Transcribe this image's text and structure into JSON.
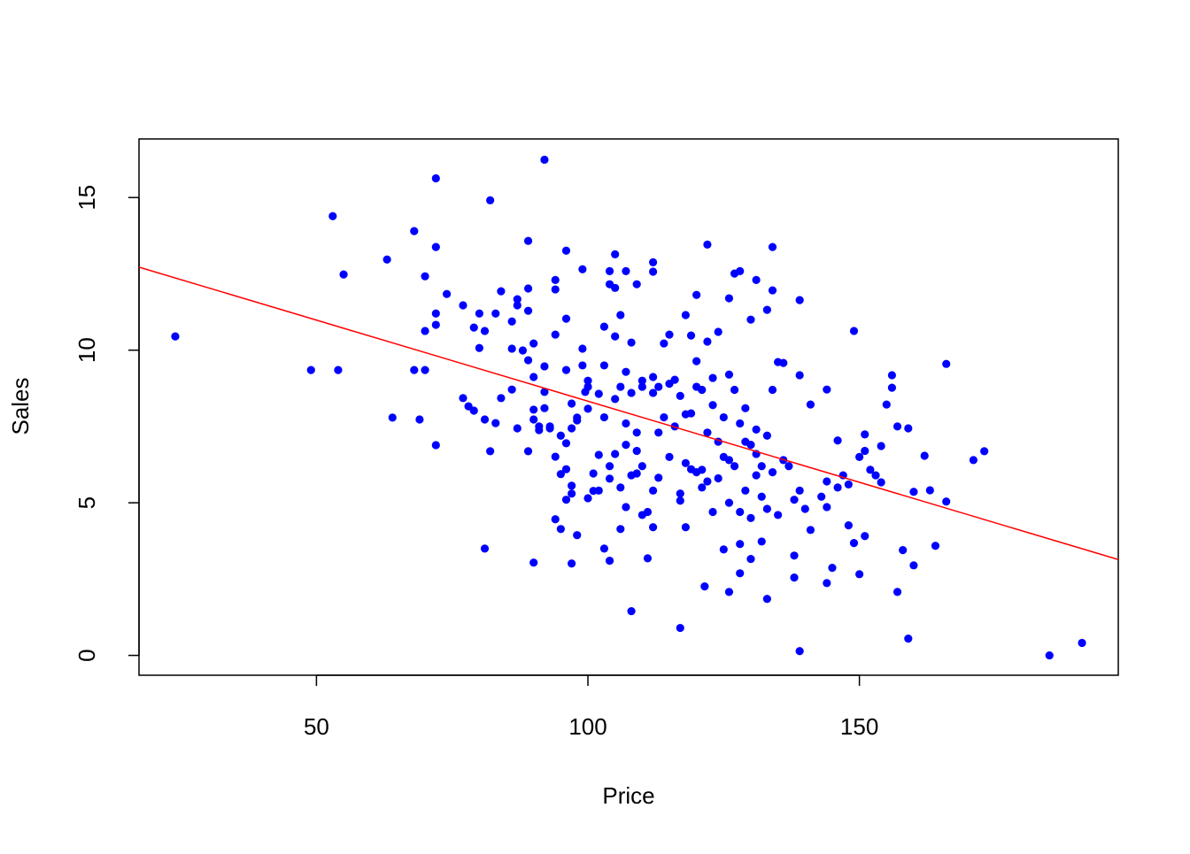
{
  "chart_data": {
    "type": "scatter",
    "xlabel": "Price",
    "ylabel": "Sales",
    "color": "#0000ff",
    "x": [
      24,
      49,
      53,
      54,
      55,
      63,
      64,
      68,
      68,
      69,
      70,
      70,
      70,
      72,
      72,
      72,
      72,
      72,
      74,
      77,
      77,
      78,
      79,
      79,
      80,
      80,
      81,
      81,
      81,
      82,
      82,
      83,
      83,
      84,
      84,
      86,
      86,
      86,
      87,
      87,
      87,
      88,
      89,
      89,
      89,
      89,
      89,
      90,
      90,
      90,
      90,
      90,
      91,
      91,
      92,
      92,
      92,
      93,
      94,
      94,
      94,
      94,
      94,
      95,
      95,
      96,
      96,
      96,
      96,
      96,
      97,
      97,
      97,
      97,
      98,
      98,
      99,
      99,
      99,
      99.5,
      100,
      100,
      100,
      101,
      101,
      102,
      102,
      103,
      103,
      103,
      104,
      104,
      104,
      104,
      105,
      105,
      105,
      105,
      106,
      106,
      107,
      107,
      107,
      108,
      108,
      109,
      109,
      110,
      110,
      111,
      112,
      112,
      112,
      112,
      113,
      114,
      115,
      116,
      117,
      117,
      118,
      118,
      119,
      119,
      120,
      120,
      121,
      121.5,
      122,
      122,
      123,
      124,
      125,
      126,
      126,
      127,
      128,
      128,
      128,
      130,
      130,
      131,
      132,
      133,
      133,
      134,
      134,
      135,
      136,
      138,
      138,
      139,
      139,
      139,
      141,
      141,
      144,
      144,
      144,
      145,
      146,
      148,
      149,
      149,
      150,
      151,
      151,
      152,
      154,
      154,
      155,
      156,
      156,
      157,
      157,
      158,
      159,
      159,
      160,
      160,
      162,
      163,
      164,
      166,
      166,
      171,
      173,
      185,
      191,
      110,
      112,
      114,
      115,
      116,
      117,
      118,
      118,
      119,
      120,
      120,
      121,
      121,
      122,
      122,
      123,
      123,
      124,
      124,
      125,
      125,
      126,
      126,
      126,
      127,
      127,
      128,
      128,
      129,
      129,
      129,
      130,
      130,
      131,
      131,
      131,
      132,
      132,
      133,
      133,
      134,
      134,
      135,
      136,
      137,
      138,
      139,
      140,
      143,
      144,
      146,
      147,
      148,
      150,
      151,
      153,
      103,
      104,
      105,
      106,
      107,
      108,
      109,
      106,
      107,
      108,
      109,
      110,
      111,
      112,
      113,
      102,
      100,
      98,
      97,
      96,
      95,
      93,
      92,
      113,
      115,
      117
    ],
    "values": [
      10.45,
      9.35,
      14.39,
      9.35,
      12.48,
      12.97,
      7.79,
      13.9,
      9.35,
      7.73,
      12.42,
      9.35,
      10.63,
      15.63,
      11.2,
      10.83,
      6.89,
      13.38,
      11.84,
      11.47,
      8.43,
      8.16,
      8.02,
      10.74,
      11.2,
      10.07,
      10.63,
      7.73,
      3.5,
      14.91,
      6.69,
      11.2,
      7.61,
      11.93,
      8.43,
      10.94,
      10.05,
      8.71,
      7.44,
      11.67,
      11.47,
      9.99,
      6.69,
      13.58,
      12.02,
      11.29,
      9.67,
      10.22,
      9.12,
      7.73,
      3.04,
      8.05,
      7.5,
      7.38,
      16.24,
      9.47,
      8.63,
      7.44,
      12.3,
      11.99,
      10.51,
      6.51,
      4.46,
      4.14,
      5.94,
      13.26,
      11.03,
      9.35,
      6.95,
      5.1,
      8.25,
      5.56,
      3.01,
      7.44,
      7.79,
      3.94,
      12.65,
      10.05,
      9.5,
      8.63,
      9.0,
      5.15,
      8.08,
      5.96,
      5.39,
      8.57,
      6.57,
      9.5,
      10.77,
      3.5,
      12.16,
      12.59,
      3.1,
      5.79,
      13.14,
      10.45,
      12.04,
      8.4,
      11.15,
      4.14,
      12.59,
      9.29,
      4.86,
      1.45,
      10.25,
      12.16,
      5.96,
      9.0,
      4.6,
      3.18,
      12.88,
      12.57,
      4.2,
      9.12,
      5.82,
      10.22,
      10.51,
      9.03,
      0.9,
      5.07,
      11.15,
      4.2,
      10.48,
      7.93,
      11.81,
      9.64,
      6.08,
      2.26,
      13.46,
      10.28,
      9.09,
      10.6,
      3.47,
      2.08,
      11.7,
      12.51,
      12.59,
      3.65,
      2.69,
      11.0,
      3.16,
      12.3,
      3.73,
      11.32,
      1.85,
      13.38,
      11.96,
      9.61,
      9.58,
      3.27,
      2.55,
      0.14,
      11.64,
      9.18,
      8.22,
      4.11,
      4.86,
      8.71,
      2.37,
      2.87,
      7.04,
      4.26,
      10.63,
      3.68,
      2.66,
      7.24,
      3.91,
      6.08,
      5.67,
      6.86,
      8.22,
      9.18,
      8.77,
      2.08,
      7.5,
      3.45,
      7.44,
      0.55,
      5.36,
      2.95,
      6.54,
      5.41,
      3.59,
      9.55,
      5.04,
      6.4,
      6.69,
      0,
      0.41,
      8.8,
      8.6,
      7.8,
      8.9,
      7.5,
      8.5,
      7.9,
      6.3,
      6.1,
      8.8,
      6.0,
      5.5,
      8.7,
      7.3,
      5.7,
      8.2,
      4.7,
      7.0,
      5.8,
      7.8,
      6.5,
      9.2,
      6.4,
      5.0,
      8.7,
      6.2,
      7.6,
      4.7,
      7.0,
      8.1,
      5.4,
      6.9,
      4.5,
      6.6,
      5.9,
      7.4,
      6.2,
      5.2,
      4.8,
      7.2,
      6.0,
      8.7,
      4.6,
      6.4,
      6.2,
      5.1,
      5.4,
      4.8,
      5.2,
      5.7,
      5.5,
      5.9,
      5.6,
      6.5,
      6.7,
      5.9,
      7.8,
      6.2,
      6.6,
      5.5,
      6.9,
      5.9,
      6.7,
      8.8,
      7.6,
      8.6,
      7.3,
      6.2,
      4.7,
      5.4,
      8.8,
      5.4,
      8.8,
      7.7,
      5.3,
      6.1,
      7.2,
      7.5,
      8.1,
      7.3,
      6.5,
      5.3
    ],
    "regression_line": {
      "color": "#ff0000",
      "x": [
        17.32,
        197.68
      ],
      "y": [
        12.72,
        3.14
      ]
    },
    "xlim": [
      17.32,
      197.68
    ],
    "ylim": [
      -0.65,
      16.92
    ],
    "xticks": [
      50,
      100,
      150
    ],
    "yticks": [
      0,
      5,
      10,
      15
    ]
  }
}
